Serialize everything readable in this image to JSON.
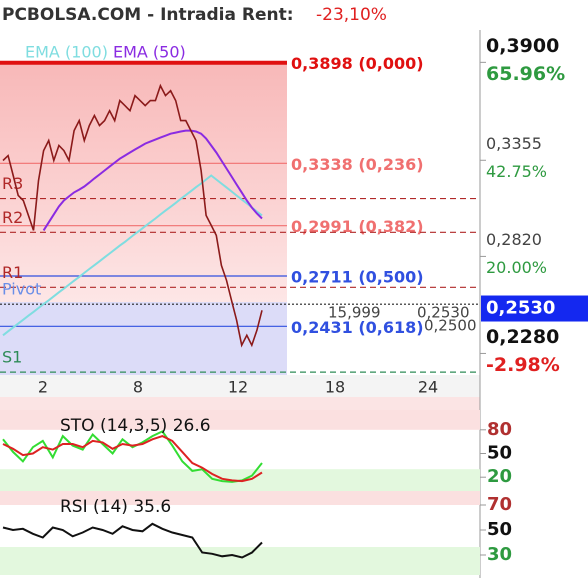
{
  "chart_data": [
    {
      "type": "line",
      "title": "PCBOLSA.COM - Intradia  Rent:",
      "subtitle": "-23,10%",
      "ylim": [
        0.216,
        0.408
      ],
      "yticks": [
        {
          "value": 0.39,
          "label": "0,3900",
          "change": "65.96%"
        },
        {
          "value": 0.3355,
          "label": "0,3355",
          "change": "42.75%"
        },
        {
          "value": 0.282,
          "label": "0,2820",
          "change": "20.00%"
        },
        {
          "value": 0.228,
          "label": "0,2280",
          "change": "-2.98%"
        }
      ],
      "x_labels": [
        2,
        8,
        12,
        18,
        24
      ],
      "current_price": {
        "value": 0.253,
        "label": "0,2530"
      },
      "fib_levels": [
        {
          "value": 0.3898,
          "label": "0,3898 (0,000)",
          "color": "#e01010"
        },
        {
          "value": 0.3338,
          "label": "0,3338 (0,236)",
          "color": "#f07070"
        },
        {
          "value": 0.2991,
          "label": "0,2991 (0,382)",
          "color": "#f07070"
        },
        {
          "value": 0.2711,
          "label": "0,2711 (0,500)",
          "color": "#3050e0"
        },
        {
          "value": 0.2431,
          "label": "0,2431 (0,618)",
          "color": "#3050e0"
        }
      ],
      "pivots": [
        {
          "name": "R3",
          "value": 0.3142,
          "color": "#b02828"
        },
        {
          "name": "R2",
          "value": 0.2954,
          "color": "#b02828"
        },
        {
          "name": "R1",
          "value": 0.2648,
          "color": "#b02828"
        },
        {
          "name": "Pivot",
          "value": 0.2554,
          "color": "#222222"
        },
        {
          "name": "S1",
          "value": 0.2176,
          "color": "#2e8b57"
        }
      ],
      "annotations": [
        "15,999",
        "0,2530",
        "0,2500"
      ],
      "series": [
        {
          "name": "EMA (100)",
          "color": "#7fdde0",
          "values": [
            0.2381,
            0.2403,
            0.2425,
            0.2446,
            0.2468,
            0.249,
            0.2511,
            0.2533,
            0.2555,
            0.2576,
            0.2598,
            0.262,
            0.2641,
            0.2663,
            0.2685,
            0.2706,
            0.2728,
            0.275,
            0.2771,
            0.2793,
            0.2815,
            0.2836,
            0.2858,
            0.288,
            0.2901,
            0.2923,
            0.2945,
            0.2966,
            0.2988,
            0.301,
            0.3031,
            0.3053,
            0.3075,
            0.3096,
            0.3118,
            0.314,
            0.3161,
            0.3183,
            0.3205,
            0.3226,
            0.3248,
            0.327,
            0.3248,
            0.3226,
            0.3204,
            0.3182,
            0.3159,
            0.3137,
            0.3115,
            0.3093,
            0.307,
            0.3048
          ]
        },
        {
          "name": "EMA (50)",
          "color": "#8a2be2",
          "values": [
            null,
            null,
            null,
            null,
            null,
            null,
            null,
            null,
            0.2965,
            0.3009,
            0.3054,
            0.3098,
            0.3131,
            0.3154,
            0.3176,
            0.3192,
            0.3209,
            0.3231,
            0.3254,
            0.3276,
            0.3298,
            0.332,
            0.3342,
            0.3364,
            0.3381,
            0.3398,
            0.3415,
            0.3431,
            0.3448,
            0.3459,
            0.347,
            0.3481,
            0.3492,
            0.3503,
            0.3509,
            0.3515,
            0.352,
            0.352,
            0.3515,
            0.3503,
            0.3476,
            0.3437,
            0.3398,
            0.3354,
            0.3309,
            0.3265,
            0.322,
            0.3176,
            0.3131,
            0.3092,
            0.3059,
            0.3031
          ]
        },
        {
          "color": "#8b1a1a",
          "values": [
            0.3354,
            0.3381,
            0.327,
            0.3159,
            0.3131,
            0.3048,
            0.2965,
            0.3242,
            0.3409,
            0.3465,
            0.3354,
            0.3437,
            0.3409,
            0.3354,
            0.352,
            0.3576,
            0.3465,
            0.3548,
            0.3604,
            0.3548,
            0.3576,
            0.3631,
            0.3576,
            0.3687,
            0.3659,
            0.3631,
            0.3715,
            0.3687,
            0.3659,
            0.3687,
            0.3687,
            0.377,
            0.3715,
            0.3742,
            0.3687,
            0.3576,
            0.3576,
            0.352,
            0.3465,
            0.3298,
            0.3048,
            0.2993,
            0.2937,
            0.277,
            0.2687,
            0.2576,
            0.2465,
            0.2326,
            0.2381,
            0.2326,
            0.2409,
            0.252
          ]
        }
      ]
    },
    {
      "type": "line",
      "title": "STO (14,3,5) 26.6",
      "ylim": [
        0,
        100
      ],
      "yticks": [
        80,
        50,
        20
      ],
      "series": [
        {
          "color": "#33dd33",
          "values": [
            68,
            52,
            40,
            58,
            66,
            45,
            72,
            60,
            55,
            74,
            62,
            50,
            68,
            58,
            64,
            72,
            78,
            60,
            40,
            28,
            30,
            18,
            15,
            14,
            16,
            22,
            38
          ]
        },
        {
          "color": "#dd2222",
          "values": [
            62,
            56,
            48,
            50,
            58,
            55,
            62,
            62,
            58,
            66,
            64,
            56,
            62,
            60,
            62,
            68,
            72,
            66,
            52,
            38,
            32,
            24,
            18,
            16,
            15,
            18,
            26
          ]
        }
      ]
    },
    {
      "type": "line",
      "title": "RSI (14) 35.6",
      "ylim": [
        14,
        78
      ],
      "yticks": [
        70,
        50,
        30
      ],
      "series": [
        {
          "color": "#111111",
          "values": [
            52,
            50,
            51,
            47,
            44,
            52,
            50,
            45,
            48,
            52,
            50,
            47,
            53,
            50,
            49,
            55,
            51,
            48,
            46,
            44,
            32,
            31,
            29,
            30,
            28,
            32,
            40
          ]
        }
      ]
    }
  ]
}
